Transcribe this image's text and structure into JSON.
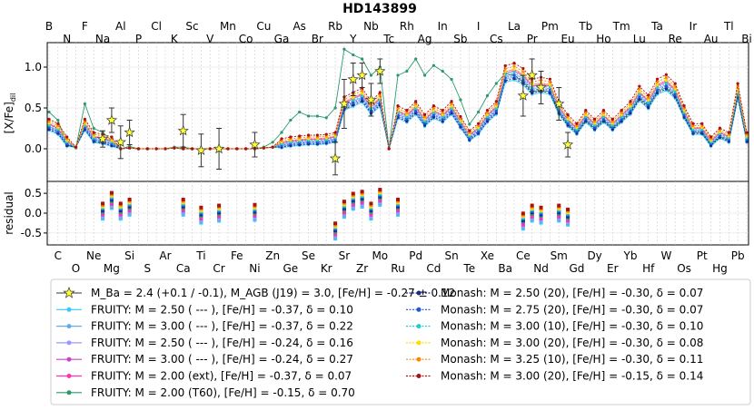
{
  "chart_data": {
    "type": "line",
    "title": "HD143899",
    "top_panel": {
      "ylabel": "[X/Fe]",
      "ylabel_sub": "dil",
      "ylim": [
        -0.4,
        1.3
      ],
      "yticks": [
        "0.0",
        "0.5",
        "1.0"
      ],
      "grid": true
    },
    "bottom_panel": {
      "ylabel": "residual",
      "ylim": [
        -0.8,
        0.8
      ],
      "yticks": [
        "-0.5",
        "0.0",
        "0.5"
      ]
    },
    "elements_top": [
      "B",
      "N",
      "F",
      "Na",
      "Al",
      "P",
      "Cl",
      "K",
      "Sc",
      "V",
      "Mn",
      "Co",
      "Cu",
      "Ga",
      "As",
      "Br",
      "Rb",
      "Y",
      "Nb",
      "Tc",
      "Rh",
      "Ag",
      "In",
      "Sb",
      "I",
      "Cs",
      "La",
      "Pr",
      "Pm",
      "Eu",
      "Tb",
      "Ho",
      "Tm",
      "Lu",
      "Ta",
      "Re",
      "Ir",
      "Au",
      "Tl",
      "Bi"
    ],
    "elements_bottom": [
      "C",
      "O",
      "Ne",
      "Mg",
      "Si",
      "S",
      "Ar",
      "Ca",
      "Ti",
      "Cr",
      "Fe",
      "Ni",
      "Zn",
      "Ge",
      "Se",
      "Kr",
      "Sr",
      "Zr",
      "Mo",
      "Ru",
      "Pd",
      "Cd",
      "Sn",
      "Te",
      "Xe",
      "Ba",
      "Ce",
      "Nd",
      "Sm",
      "Gd",
      "Dy",
      "Er",
      "Yb",
      "Hf",
      "W",
      "Os",
      "Pt",
      "Hg",
      "Pb"
    ],
    "observations": {
      "legend": "M_Ba = 2.4 (+0.1 / -0.1), M_AGB (J19) = 3.0, [Fe/H] = -0.27 ± 0.12",
      "points": [
        {
          "el": "Na",
          "Z": 11,
          "y": 0.12,
          "err": 0.1
        },
        {
          "el": "Mg",
          "Z": 12,
          "y": 0.35,
          "err": 0.15
        },
        {
          "el": "Al",
          "Z": 13,
          "y": 0.08,
          "err": 0.2
        },
        {
          "el": "Si",
          "Z": 14,
          "y": 0.2,
          "err": 0.15
        },
        {
          "el": "Ca",
          "Z": 20,
          "y": 0.22,
          "err": 0.2
        },
        {
          "el": "Ti",
          "Z": 22,
          "y": -0.02,
          "err": 0.2
        },
        {
          "el": "Cr",
          "Z": 24,
          "y": 0.0,
          "err": 0.25
        },
        {
          "el": "Ni",
          "Z": 28,
          "y": 0.05,
          "err": 0.15
        },
        {
          "el": "Rb",
          "Z": 37,
          "y": -0.12,
          "err": 0.2
        },
        {
          "el": "Sr",
          "Z": 38,
          "y": 0.55,
          "err": 0.3
        },
        {
          "el": "Y",
          "Z": 39,
          "y": 0.85,
          "err": 0.2
        },
        {
          "el": "Zr",
          "Z": 40,
          "y": 0.9,
          "err": 0.15
        },
        {
          "el": "Nb",
          "Z": 41,
          "y": 0.6,
          "err": 0.2
        },
        {
          "el": "Mo",
          "Z": 42,
          "y": 0.95,
          "err": 0.15
        },
        {
          "el": "Ce",
          "Z": 58,
          "y": 0.65,
          "err": 0.25
        },
        {
          "el": "Pr",
          "Z": 59,
          "y": 0.9,
          "err": 0.2
        },
        {
          "el": "Nd",
          "Z": 60,
          "y": 0.75,
          "err": 0.2
        },
        {
          "el": "Sm",
          "Z": 62,
          "y": 0.55,
          "err": 0.2
        },
        {
          "el": "Eu",
          "Z": 63,
          "y": 0.05,
          "err": 0.15
        }
      ]
    },
    "series": [
      {
        "name": "FRUITY:   M = 2.50 ( --- ), [Fe/H] = -0.37,  δ = 0.10",
        "color": "#33ccff",
        "style": "solid",
        "offset": -0.02
      },
      {
        "name": "FRUITY:   M = 3.00 ( --- ), [Fe/H] = -0.37,  δ = 0.22",
        "color": "#66aaee",
        "style": "solid",
        "offset": 0.0
      },
      {
        "name": "FRUITY:   M = 2.50 ( --- ), [Fe/H] = -0.24,  δ = 0.16",
        "color": "#9999ff",
        "style": "solid",
        "offset": 0.02
      },
      {
        "name": "FRUITY:   M = 3.00 ( --- ), [Fe/H] = -0.24,  δ = 0.27",
        "color": "#cc44cc",
        "style": "solid",
        "offset": 0.04
      },
      {
        "name": "FRUITY:   M = 2.00 (ext), [Fe/H] = -0.37,  δ = 0.07",
        "color": "#ff33aa",
        "style": "solid",
        "offset": 0.05
      },
      {
        "name": "FRUITY:   M = 2.00 (T60), [Fe/H] = -0.15,  δ = 0.70",
        "color": "#2a9a6a",
        "style": "solid",
        "offset": 0.0,
        "special": true
      },
      {
        "name": "Monash:  M = 2.50 (20),   [Fe/H] = -0.30,  δ = 0.07",
        "color": "#1a2a8a",
        "style": "dashed",
        "offset": -0.01
      },
      {
        "name": "Monash:  M = 2.75 (20),   [Fe/H] = -0.30,  δ = 0.07",
        "color": "#2255dd",
        "style": "dashed",
        "offset": 0.01
      },
      {
        "name": "Monash:  M = 3.00 (10),   [Fe/H] = -0.30,  δ = 0.10",
        "color": "#22cccc",
        "style": "dashed",
        "offset": 0.03
      },
      {
        "name": "Monash:  M = 3.00 (20),   [Fe/H] = -0.30,  δ = 0.08",
        "color": "#ffdd00",
        "style": "dashed",
        "offset": 0.05
      },
      {
        "name": "Monash:  M = 3.25 (10),   [Fe/H] = -0.30,  δ = 0.11",
        "color": "#ff8800",
        "style": "dashed",
        "offset": 0.07
      },
      {
        "name": "Monash:  M = 3.00 (20),   [Fe/H] = -0.15,  δ = 0.14",
        "color": "#aa1111",
        "style": "dashed",
        "offset": 0.09
      }
    ],
    "model_base": {
      "Z": [
        5,
        6,
        7,
        8,
        9,
        10,
        11,
        12,
        13,
        14,
        15,
        16,
        17,
        18,
        19,
        20,
        21,
        22,
        23,
        24,
        25,
        26,
        27,
        28,
        29,
        30,
        31,
        32,
        33,
        34,
        35,
        36,
        37,
        38,
        39,
        40,
        41,
        42,
        43,
        44,
        45,
        46,
        47,
        48,
        49,
        50,
        51,
        52,
        53,
        54,
        55,
        56,
        57,
        58,
        59,
        60,
        61,
        62,
        63,
        64,
        65,
        66,
        67,
        68,
        69,
        70,
        71,
        72,
        73,
        74,
        75,
        76,
        77,
        78,
        79,
        80,
        81,
        82,
        83
      ],
      "y": [
        0.25,
        0.2,
        0.05,
        0.02,
        0.25,
        0.1,
        0.08,
        0.05,
        0.0,
        0.01,
        0.0,
        0.0,
        0.0,
        0.0,
        0.01,
        0.0,
        0.0,
        0.0,
        0.0,
        0.0,
        0.0,
        0.0,
        0.0,
        0.0,
        0.01,
        0.02,
        0.03,
        0.05,
        0.06,
        0.07,
        0.07,
        0.08,
        0.1,
        0.5,
        0.55,
        0.6,
        0.45,
        0.55,
        0.0,
        0.4,
        0.35,
        0.45,
        0.3,
        0.4,
        0.35,
        0.45,
        0.28,
        0.12,
        0.2,
        0.35,
        0.45,
        0.85,
        0.88,
        0.82,
        0.7,
        0.72,
        0.7,
        0.45,
        0.3,
        0.2,
        0.35,
        0.25,
        0.35,
        0.25,
        0.35,
        0.45,
        0.62,
        0.52,
        0.7,
        0.75,
        0.65,
        0.4,
        0.2,
        0.2,
        0.05,
        0.15,
        0.1,
        0.65,
        0.1
      ]
    },
    "model_t60": {
      "y": [
        0.45,
        0.35,
        0.05,
        0.01,
        0.55,
        0.25,
        0.2,
        0.1,
        0.0,
        0.03,
        0.0,
        0.0,
        0.0,
        0.0,
        0.02,
        0.02,
        0.0,
        0.0,
        0.0,
        0.0,
        0.0,
        0.0,
        0.0,
        0.0,
        0.02,
        0.08,
        0.2,
        0.35,
        0.45,
        0.4,
        0.4,
        0.38,
        0.5,
        1.22,
        1.15,
        1.1,
        0.9,
        1.0,
        0.0,
        0.9,
        0.95,
        1.1,
        0.9,
        1.02,
        0.95,
        0.85,
        0.6,
        0.3,
        0.45,
        0.65,
        0.8,
        0.92,
        0.9,
        0.82,
        0.7,
        0.72,
        0.7,
        0.45,
        0.3,
        0.2,
        0.35,
        0.25,
        0.35,
        0.25,
        0.35,
        0.45,
        0.62,
        0.52,
        0.7,
        0.75,
        0.65,
        0.4,
        0.2,
        0.2,
        0.05,
        0.15,
        0.1,
        0.65,
        0.12
      ]
    },
    "residuals": {
      "Z": [
        11,
        12,
        13,
        14,
        20,
        22,
        24,
        28,
        37,
        38,
        39,
        40,
        41,
        42,
        44,
        58,
        59,
        60,
        62,
        63
      ],
      "y": [
        0.05,
        0.32,
        0.05,
        0.15,
        0.15,
        -0.05,
        0.0,
        0.02,
        -0.45,
        0.1,
        0.3,
        0.35,
        0.05,
        0.4,
        0.15,
        -0.2,
        0.0,
        -0.05,
        0.0,
        -0.1
      ]
    }
  }
}
